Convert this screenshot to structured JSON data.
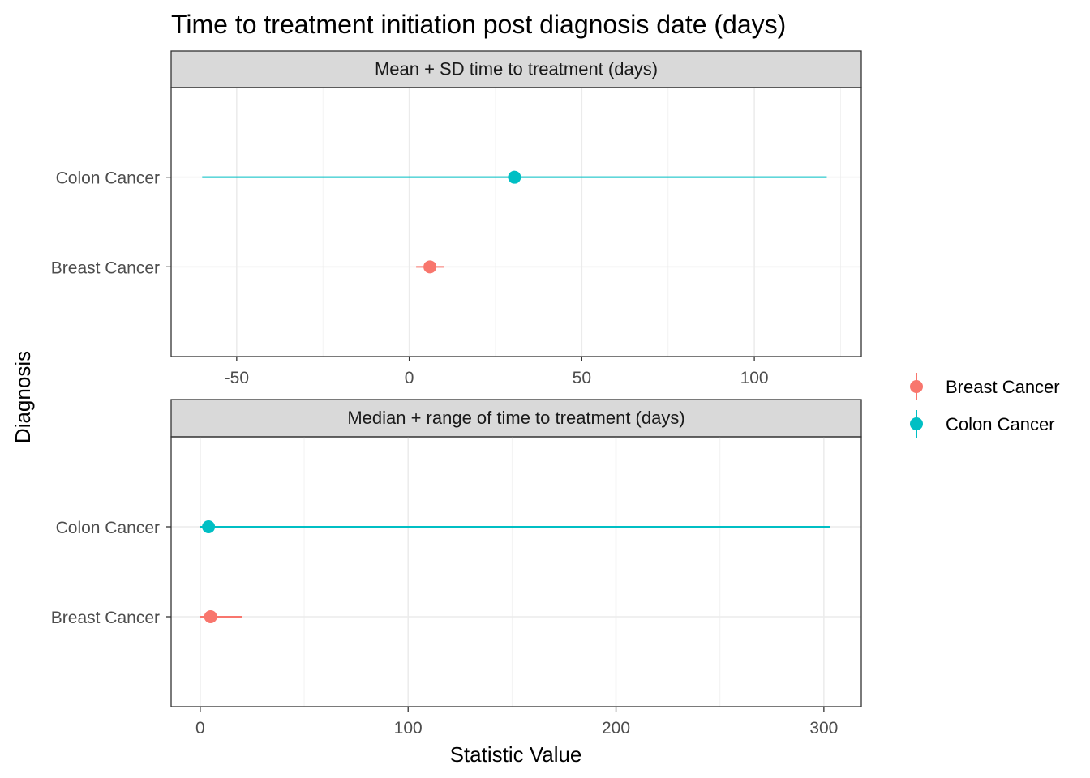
{
  "chart_data": {
    "title": "Time to treatment initiation post diagnosis date (days)",
    "type": "pointrange",
    "xlabel": "Statistic Value",
    "ylabel": "Diagnosis",
    "categories": [
      "Breast Cancer",
      "Colon Cancer"
    ],
    "colors": {
      "Breast Cancer": "#F8766D",
      "Colon Cancer": "#00BFC4"
    },
    "legend": {
      "position": "right",
      "entries": [
        {
          "label": "Breast Cancer",
          "color": "#F8766D"
        },
        {
          "label": "Colon Cancer",
          "color": "#00BFC4"
        }
      ]
    },
    "grid": true,
    "panels": [
      {
        "strip": "Mean + SD time to treatment (days)",
        "xlim": [
          -69,
          131
        ],
        "xticks": [
          -50,
          0,
          50,
          100
        ],
        "series": [
          {
            "name": "Breast Cancer",
            "value": 6,
            "low": 2,
            "high": 10
          },
          {
            "name": "Colon Cancer",
            "value": 30.5,
            "low": -60,
            "high": 121
          }
        ]
      },
      {
        "strip": "Median + range of time to treatment (days)",
        "xlim": [
          -14,
          318
        ],
        "xticks": [
          0,
          100,
          200,
          300
        ],
        "series": [
          {
            "name": "Breast Cancer",
            "value": 5,
            "low": 0,
            "high": 20
          },
          {
            "name": "Colon Cancer",
            "value": 4,
            "low": 0,
            "high": 303
          }
        ]
      }
    ]
  }
}
